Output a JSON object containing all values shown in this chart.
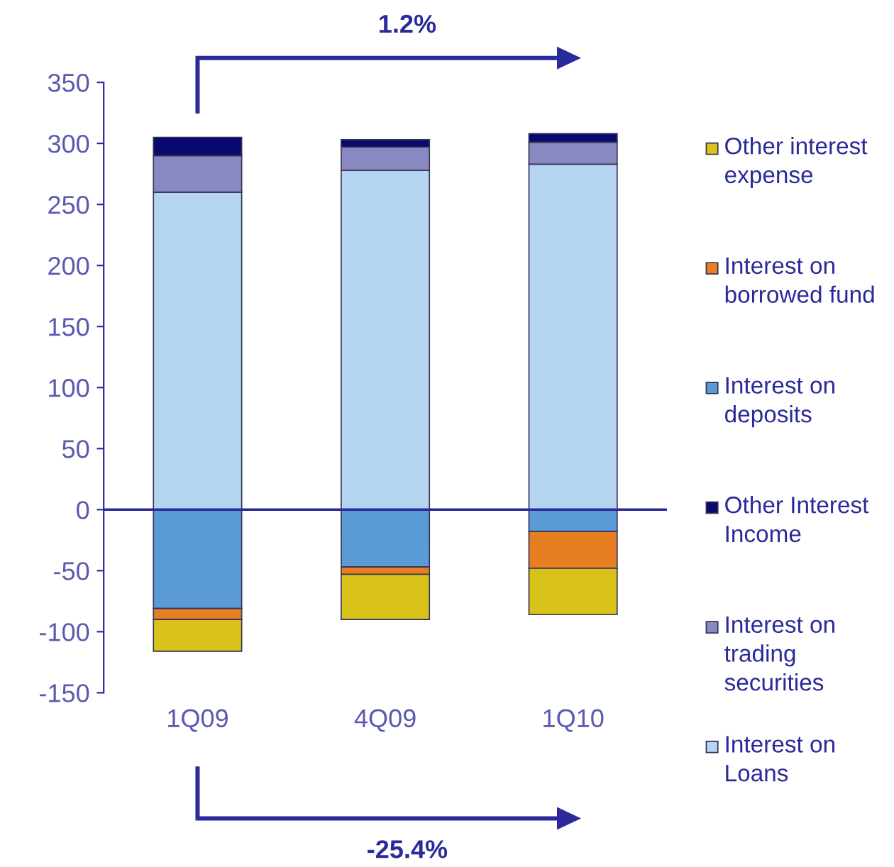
{
  "chart_data": {
    "type": "bar",
    "stacked": true,
    "categories": [
      "1Q09",
      "4Q09",
      "1Q10"
    ],
    "series": [
      {
        "name": "Interest on Loans",
        "color": "#b4d4f2",
        "values": [
          260,
          278,
          283
        ]
      },
      {
        "name": "Interest on trading securities",
        "color": "#8a88c0",
        "values": [
          30,
          19,
          18
        ]
      },
      {
        "name": "Other Interest Income",
        "color": "#0a0a6e",
        "values": [
          15,
          6,
          7
        ]
      },
      {
        "name": "Interest on deposits",
        "color": "#5b9bd5",
        "values": [
          -81,
          -47,
          -18
        ]
      },
      {
        "name": "Interest on borrowed fund",
        "color": "#e87e22",
        "values": [
          -9,
          -6,
          -30
        ]
      },
      {
        "name": "Other interest expense",
        "color": "#d9c21a",
        "values": [
          -26,
          -37,
          -38
        ]
      }
    ],
    "ylim": [
      -150,
      350
    ],
    "yticks": [
      -150,
      -100,
      -50,
      0,
      50,
      100,
      150,
      200,
      250,
      300,
      350
    ],
    "ref_lines": [
      {
        "axis": "y",
        "value": 0,
        "color": "#2a2a9a"
      }
    ],
    "annotations": [
      "1.2%",
      "-25.4%"
    ],
    "grid": false,
    "legend": "right"
  }
}
